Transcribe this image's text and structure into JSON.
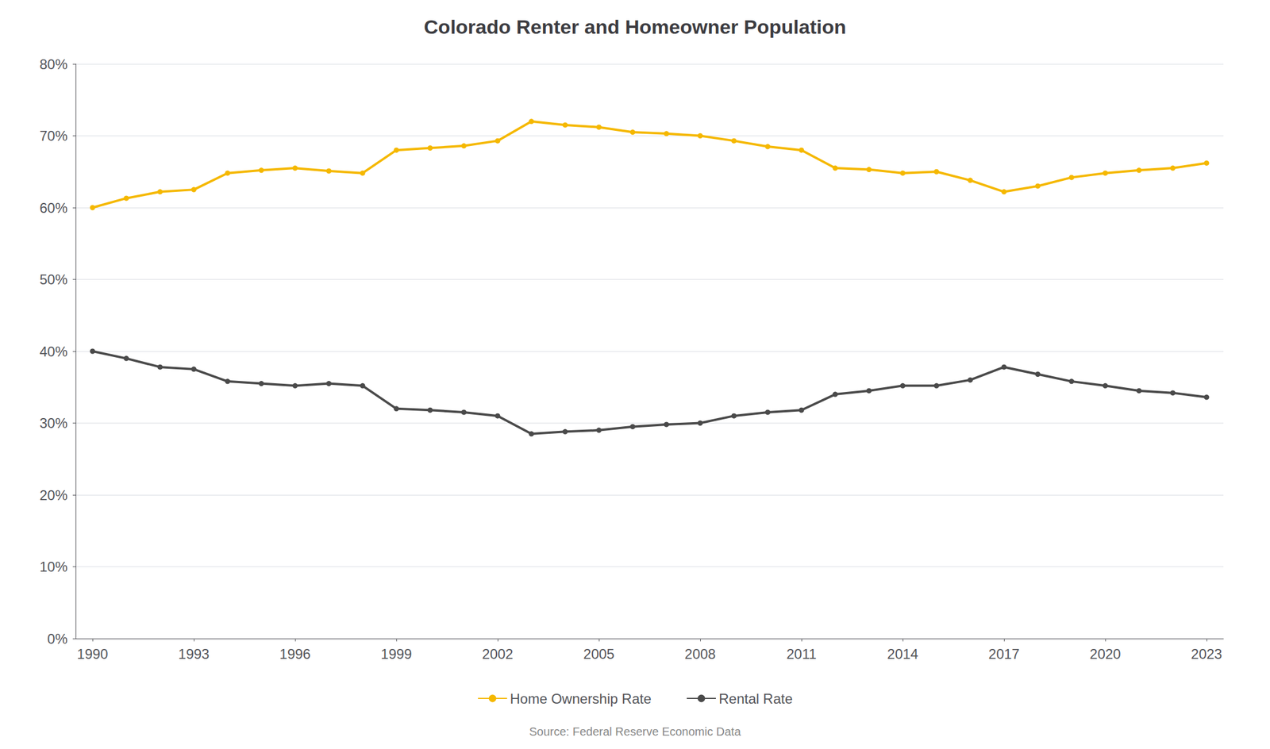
{
  "chart_data": {
    "type": "line",
    "title": "Colorado Renter and Homeowner Population",
    "source": "Source: Federal Reserve Economic Data",
    "x": [
      1990,
      1991,
      1992,
      1993,
      1994,
      1995,
      1996,
      1997,
      1998,
      1999,
      2000,
      2001,
      2002,
      2003,
      2004,
      2005,
      2006,
      2007,
      2008,
      2009,
      2010,
      2011,
      2012,
      2013,
      2014,
      2015,
      2016,
      2017,
      2018,
      2019,
      2020,
      2021,
      2022,
      2023
    ],
    "series": [
      {
        "name": "Home Ownership Rate",
        "color": "#f5b800",
        "values": [
          0.6,
          0.613,
          0.622,
          0.625,
          0.648,
          0.652,
          0.655,
          0.651,
          0.648,
          0.68,
          0.683,
          0.686,
          0.693,
          0.72,
          0.715,
          0.712,
          0.705,
          0.703,
          0.7,
          0.693,
          0.685,
          0.68,
          0.655,
          0.653,
          0.648,
          0.65,
          0.638,
          0.622,
          0.63,
          0.642,
          0.648,
          0.652,
          0.655,
          0.662
        ]
      },
      {
        "name": "Rental Rate",
        "color": "#4a4a4a",
        "values": [
          0.4,
          0.39,
          0.378,
          0.375,
          0.358,
          0.355,
          0.352,
          0.355,
          0.352,
          0.32,
          0.318,
          0.315,
          0.31,
          0.285,
          0.288,
          0.29,
          0.295,
          0.298,
          0.3,
          0.31,
          0.315,
          0.318,
          0.34,
          0.345,
          0.352,
          0.352,
          0.36,
          0.378,
          0.368,
          0.358,
          0.352,
          0.345,
          0.342,
          0.336
        ]
      }
    ],
    "xlim": [
      1989.5,
      2023.5
    ],
    "xticks": [
      1990,
      1993,
      1996,
      1999,
      2002,
      2005,
      2008,
      2011,
      2014,
      2017,
      2020,
      2023
    ],
    "ylim": [
      0,
      0.8
    ],
    "yticks": [
      {
        "value": 0.0,
        "label": "0%"
      },
      {
        "value": 0.1,
        "label": "10%"
      },
      {
        "value": 0.2,
        "label": "20%"
      },
      {
        "value": 0.3,
        "label": "30%"
      },
      {
        "value": 0.4,
        "label": "40%"
      },
      {
        "value": 0.5,
        "label": "50%"
      },
      {
        "value": 0.6,
        "label": "60%"
      },
      {
        "value": 0.7,
        "label": "70%"
      },
      {
        "value": 0.8,
        "label": "80%"
      }
    ],
    "grid": true,
    "legend": "bottom",
    "marker": "circle"
  }
}
